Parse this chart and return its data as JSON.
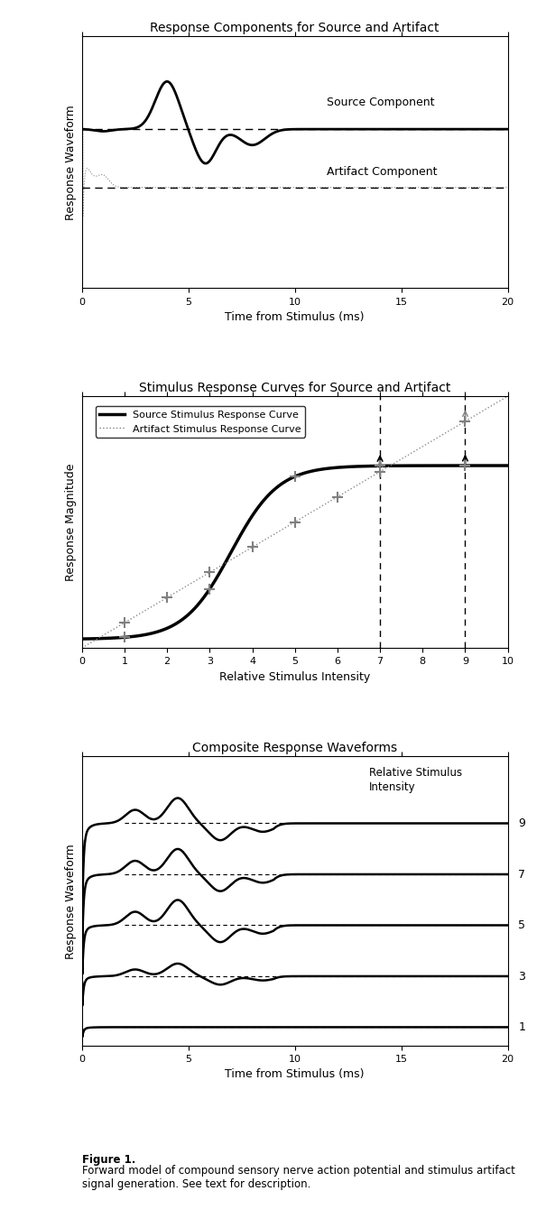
{
  "fig_width": 6.05,
  "fig_height": 13.615,
  "background": "#ffffff",
  "plot1": {
    "title": "Response Components for Source and Artifact",
    "xlabel": "Time from Stimulus (ms)",
    "ylabel": "Response Waveform",
    "xlim": [
      0,
      20
    ],
    "xticks": [
      0,
      5,
      10,
      15,
      20
    ],
    "source_label": "Source Component",
    "artifact_label": "Artifact Component"
  },
  "plot2": {
    "title": "Stimulus Response Curves for Source and Artifact",
    "xlabel": "Relative Stimulus Intensity",
    "ylabel": "Response Magnitude",
    "xlim": [
      0,
      10
    ],
    "ylim": [
      -0.05,
      1.4
    ],
    "xticks": [
      0,
      1,
      2,
      3,
      4,
      5,
      6,
      7,
      8,
      9,
      10
    ],
    "legend_source": "Source Stimulus Response Curve",
    "legend_artifact": "Artifact Stimulus Response Curve",
    "vline1": 7,
    "vline2": 9,
    "cross_xs_src": [
      1,
      3,
      5,
      7,
      9
    ],
    "cross_xs_art": [
      1,
      2,
      3,
      4,
      5,
      6,
      7,
      9
    ]
  },
  "plot3": {
    "title": "Composite Response Waveforms",
    "xlabel": "Time from Stimulus (ms)",
    "ylabel": "Response Waveform",
    "xlim": [
      0,
      20
    ],
    "xticks": [
      0,
      5,
      10,
      15,
      20
    ],
    "intensities": [
      9,
      7,
      5,
      3,
      1
    ],
    "intensity_label": "Relative Stimulus\nIntensity"
  },
  "caption_bold": "Figure 1.",
  "caption_normal": "\nForward model of compound sensory nerve action potential and stimulus artifact\nsignal generation. See text for description."
}
